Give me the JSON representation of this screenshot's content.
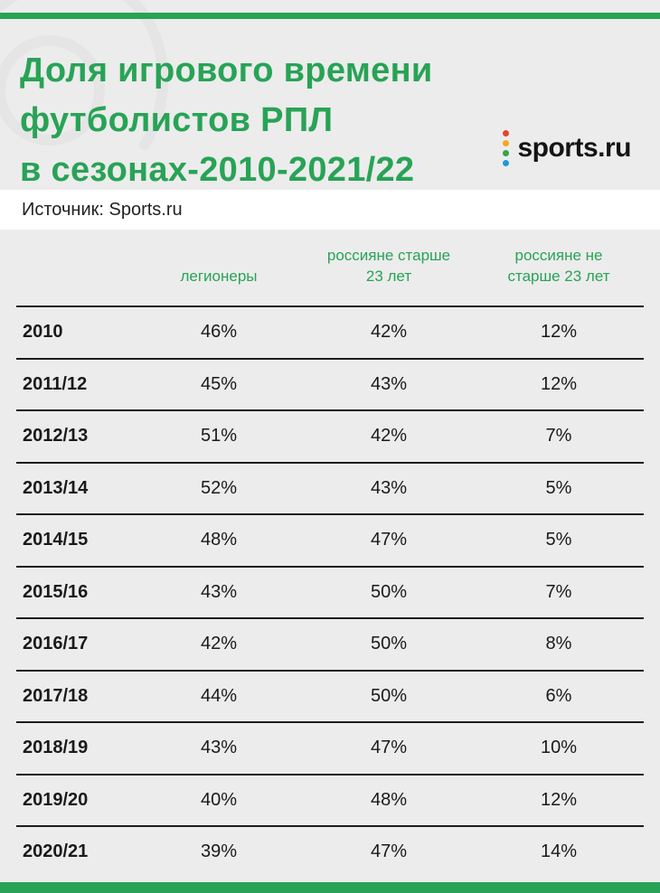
{
  "colors": {
    "accent": "#28a356",
    "background": "#ececec",
    "text": "#1a1a1a",
    "row_border": "#1d1d1d"
  },
  "header": {
    "title_lines": [
      "Доля игрового времени",
      "футболистов РПЛ",
      "в сезонах-2010-2021/22"
    ],
    "logo_text": "sports.ru",
    "logo_dot_colors": [
      "#e8432d",
      "#f6a723",
      "#37a34a",
      "#1f9ad6"
    ]
  },
  "source": {
    "label": "Источник: Sports.ru"
  },
  "chart_data": {
    "type": "table",
    "title": "Доля игрового времени футболистов РПЛ в сезонах-2010-2021/22",
    "source": "Sports.ru",
    "columns": [
      "легионеры",
      "россияне старше 23 лет",
      "россияне не старше 23 лет"
    ],
    "rows": [
      {
        "season": "2010",
        "values": [
          "46%",
          "42%",
          "12%"
        ]
      },
      {
        "season": "2011/12",
        "values": [
          "45%",
          "43%",
          "12%"
        ]
      },
      {
        "season": "2012/13",
        "values": [
          "51%",
          "42%",
          "7%"
        ]
      },
      {
        "season": "2013/14",
        "values": [
          "52%",
          "43%",
          "5%"
        ]
      },
      {
        "season": "2014/15",
        "values": [
          "48%",
          "47%",
          "5%"
        ]
      },
      {
        "season": "2015/16",
        "values": [
          "43%",
          "50%",
          "7%"
        ]
      },
      {
        "season": "2016/17",
        "values": [
          "42%",
          "50%",
          "8%"
        ]
      },
      {
        "season": "2017/18",
        "values": [
          "44%",
          "50%",
          "6%"
        ]
      },
      {
        "season": "2018/19",
        "values": [
          "43%",
          "47%",
          "10%"
        ]
      },
      {
        "season": "2019/20",
        "values": [
          "40%",
          "48%",
          "12%"
        ]
      },
      {
        "season": "2020/21",
        "values": [
          "39%",
          "47%",
          "14%"
        ]
      }
    ]
  }
}
